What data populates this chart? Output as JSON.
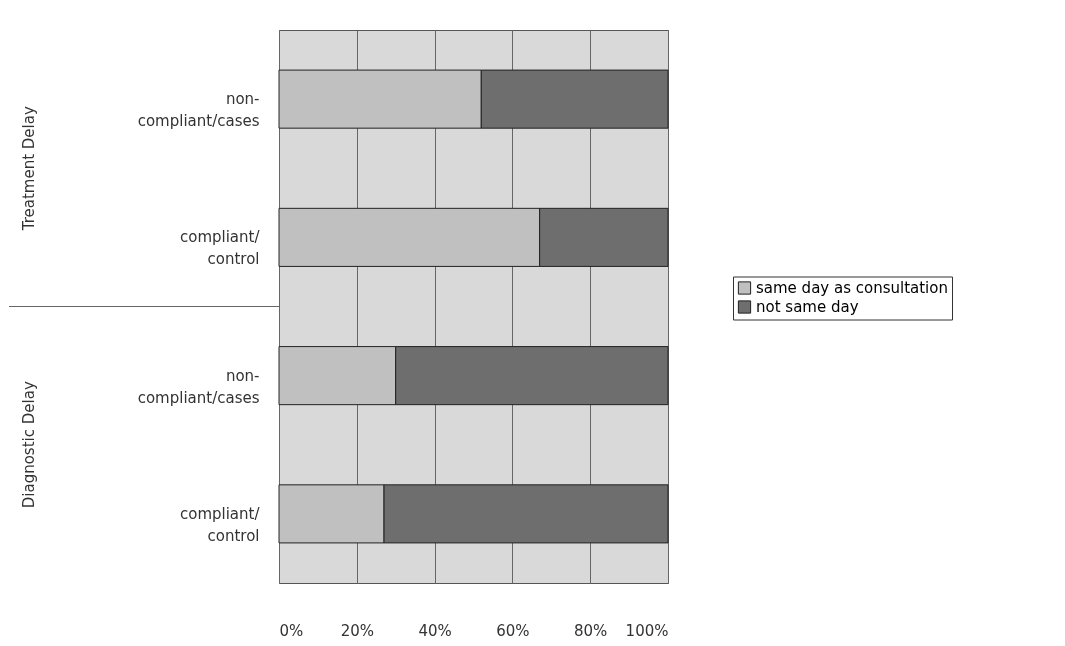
{
  "chart_data": {
    "type": "bar",
    "orientation": "horizontal",
    "stacked": true,
    "categories": [
      "non-\ncompliant/cases",
      "compliant/\ncontrol",
      "non-\ncompliant/cases",
      "compliant/\ncontrol"
    ],
    "series": [
      {
        "name": "same day as consultation",
        "color": "#c0c0c0",
        "values": [
          52,
          67,
          30,
          27
        ]
      },
      {
        "name": "not same day",
        "color": "#6e6e6e",
        "values": [
          48,
          33,
          70,
          73
        ]
      }
    ],
    "xlim": [
      0,
      100
    ],
    "xticks": [
      {
        "value": 0,
        "label": "0%"
      },
      {
        "value": 20,
        "label": "20%"
      },
      {
        "value": 40,
        "label": "40%"
      },
      {
        "value": 60,
        "label": "60%"
      },
      {
        "value": 80,
        "label": "80%"
      },
      {
        "value": 100,
        "label": "100%"
      }
    ],
    "grid": "x",
    "legend": "right",
    "annotations": [
      "Treatment Delay",
      "Diagnostic Delay"
    ]
  }
}
